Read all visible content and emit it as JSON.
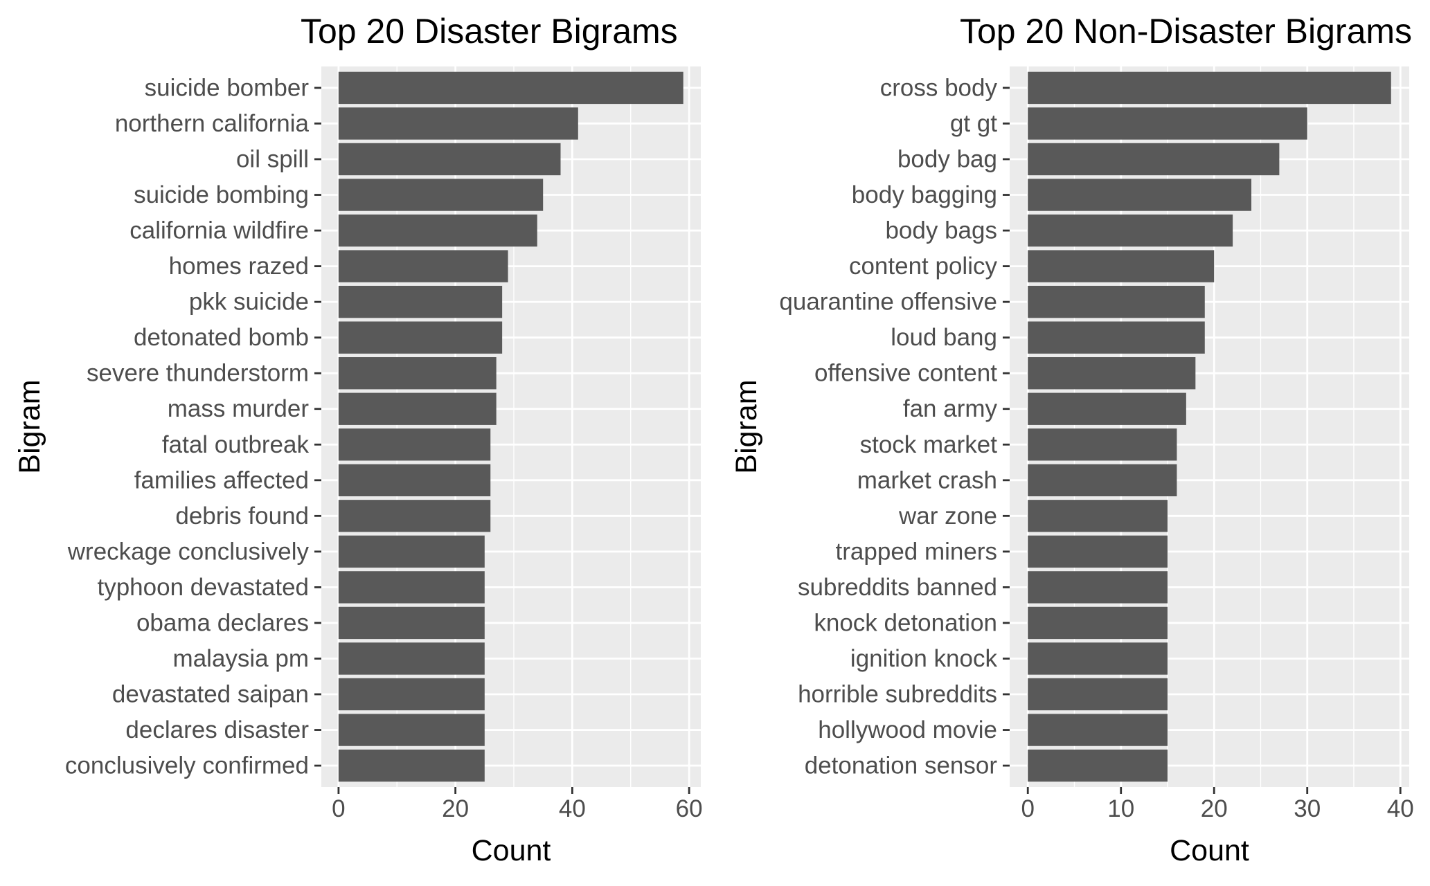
{
  "chart_data": [
    {
      "type": "bar",
      "orientation": "horizontal",
      "title": "Top 20 Disaster Bigrams",
      "xlabel": "Count",
      "ylabel": "Bigram",
      "xlim": [
        -2.95,
        62.0
      ],
      "xticks": [
        0,
        20,
        40,
        60
      ],
      "xticks_minor": [
        10,
        30,
        50
      ],
      "grid": true,
      "legend": "none",
      "bar_color": "#595959",
      "panel_color": "#ebebeb",
      "categories": [
        "suicide bomber",
        "northern california",
        "oil spill",
        "suicide bombing",
        "california wildfire",
        "homes razed",
        "pkk suicide",
        "detonated bomb",
        "severe thunderstorm",
        "mass murder",
        "fatal outbreak",
        "families affected",
        "debris found",
        "wreckage conclusively",
        "typhoon devastated",
        "obama declares",
        "malaysia pm",
        "devastated saipan",
        "declares disaster",
        "conclusively confirmed"
      ],
      "values": [
        59,
        41,
        38,
        35,
        34,
        29,
        28,
        28,
        27,
        27,
        26,
        26,
        26,
        25,
        25,
        25,
        25,
        25,
        25,
        25
      ]
    },
    {
      "type": "bar",
      "orientation": "horizontal",
      "title": "Top 20 Non-Disaster Bigrams",
      "xlabel": "Count",
      "ylabel": "Bigram",
      "xlim": [
        -1.95,
        40.95
      ],
      "xticks": [
        0,
        10,
        20,
        30,
        40
      ],
      "xticks_minor": [
        5,
        15,
        25,
        35
      ],
      "grid": true,
      "legend": "none",
      "bar_color": "#595959",
      "panel_color": "#ebebeb",
      "categories": [
        "cross body",
        "gt gt",
        "body bag",
        "body bagging",
        "body bags",
        "content policy",
        "quarantine offensive",
        "loud bang",
        "offensive content",
        "fan army",
        "stock market",
        "market crash",
        "war zone",
        "trapped miners",
        "subreddits banned",
        "knock detonation",
        "ignition knock",
        "horrible subreddits",
        "hollywood movie",
        "detonation sensor"
      ],
      "values": [
        39,
        30,
        27,
        24,
        22,
        20,
        19,
        19,
        18,
        17,
        16,
        16,
        15,
        15,
        15,
        15,
        15,
        15,
        15,
        15
      ]
    }
  ]
}
